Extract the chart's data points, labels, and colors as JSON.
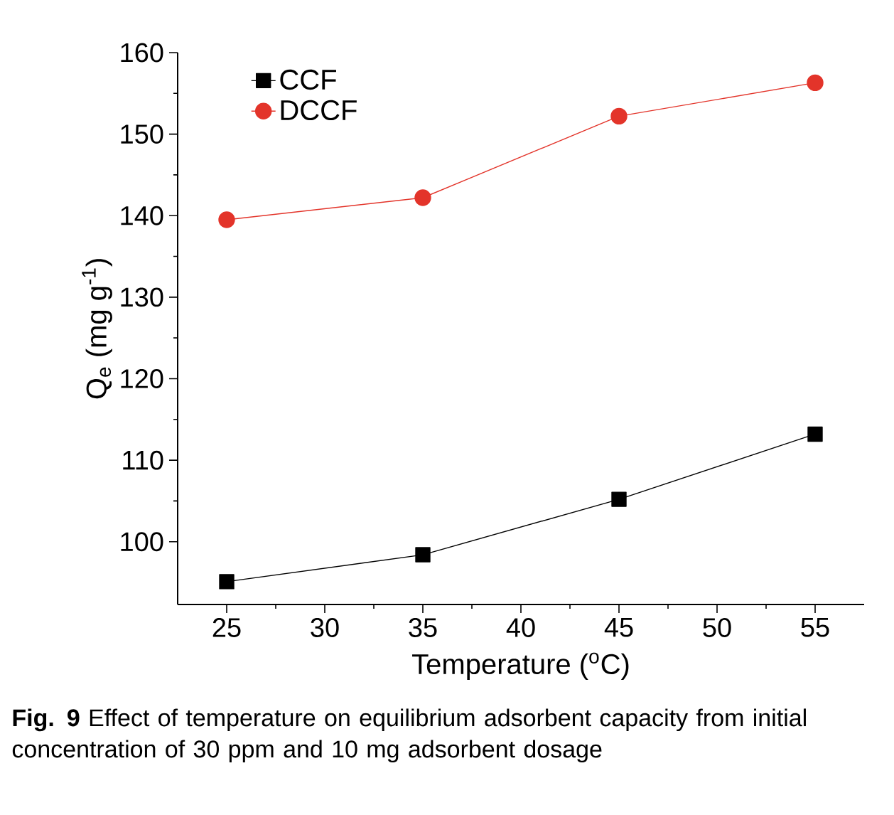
{
  "chart_data": {
    "type": "line",
    "xlabel": "Temperature ($^{o}$C)",
    "ylabel": "Q$_{e}$ (mg g$^{-1}$)",
    "x": [
      25,
      35,
      45,
      55
    ],
    "series": [
      {
        "name": "CCF",
        "color": "#000000",
        "marker": "square",
        "values": [
          95.1,
          98.4,
          105.2,
          113.2
        ]
      },
      {
        "name": "DCCF",
        "color": "#e3342a",
        "marker": "circle",
        "values": [
          139.5,
          142.2,
          152.2,
          156.3
        ]
      }
    ],
    "xlim": [
      22.5,
      57.5
    ],
    "ylim": [
      92.3,
      160
    ],
    "xticks": [
      25,
      30,
      35,
      40,
      45,
      50,
      55
    ],
    "yticks": [
      100,
      110,
      120,
      130,
      140,
      150,
      160
    ],
    "grid": false,
    "legend": "top left",
    "annotations": [
      "**Fig. 9** Effect of temperature on equilibrium adsorbent capacity from initial concentration of 30 ppm and 10 mg adsorbent dosage"
    ]
  }
}
